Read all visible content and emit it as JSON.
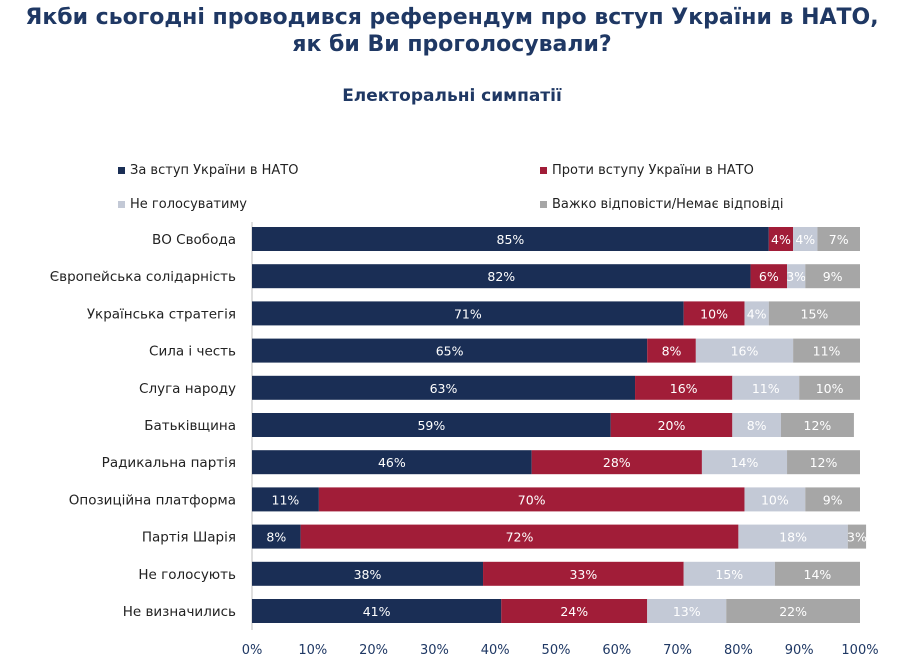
{
  "title_line1": "Якби сьогодні проводився референдум про вступ України в НАТО,",
  "title_line2": "як би Ви проголосували?",
  "subtitle": "Електоральні симпатії",
  "colors": {
    "for": "#1a2e55",
    "against": "#a11d38",
    "not_vote": "#c3c9d6",
    "hard": "#a6a6a6",
    "label_dark": "#ffffff",
    "label_light": "#ffffff",
    "axis_text": "#1f3864",
    "category_text": "#222222",
    "grid": "#d9d9d9"
  },
  "chart_data": {
    "type": "bar",
    "orientation": "horizontal-stacked-100",
    "categories": [
      "ВО Свобода",
      "Європейська солідарність",
      "Українська стратегія",
      "Сила і честь",
      "Слуга народу",
      "Батьківщина",
      "Радикальна партія",
      "Опозиційна платформа",
      "Партія Шарія",
      "Не голосують",
      "Не визначились"
    ],
    "series": [
      {
        "name": "За вступ України в НАТО",
        "color_key": "for",
        "values": [
          85,
          82,
          71,
          65,
          63,
          59,
          46,
          11,
          8,
          38,
          41
        ]
      },
      {
        "name": "Проти вступу України в НАТО",
        "color_key": "against",
        "values": [
          4,
          6,
          10,
          8,
          16,
          20,
          28,
          70,
          72,
          33,
          24
        ]
      },
      {
        "name": "Не голосуватиму",
        "color_key": "not_vote",
        "values": [
          4,
          3,
          4,
          16,
          11,
          8,
          14,
          10,
          18,
          15,
          13
        ]
      },
      {
        "name": "Важко відповісти/Немає відповіді",
        "color_key": "hard",
        "values": [
          7,
          9,
          15,
          11,
          10,
          12,
          12,
          9,
          3,
          14,
          22
        ]
      }
    ],
    "xlim": [
      0,
      100
    ],
    "xticks": [
      "0%",
      "10%",
      "20%",
      "30%",
      "40%",
      "50%",
      "60%",
      "70%",
      "80%",
      "90%",
      "100%"
    ],
    "value_suffix": "%",
    "legend_position": "top"
  }
}
